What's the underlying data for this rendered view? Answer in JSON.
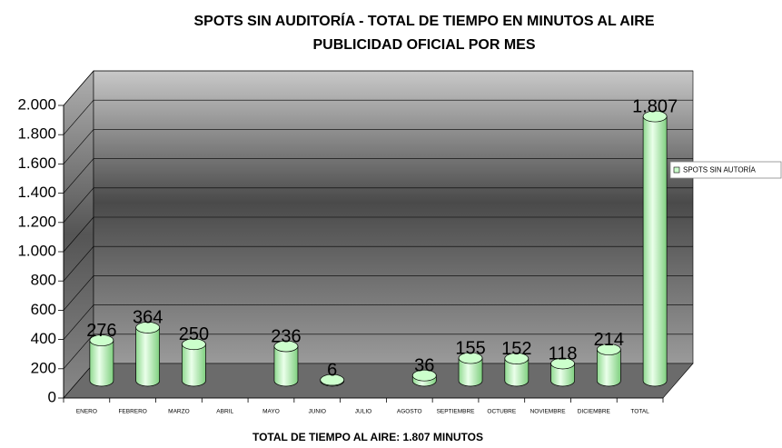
{
  "chart_data": {
    "type": "bar3d",
    "title": "SPOTS SIN AUDITORÍA - TOTAL DE TIEMPO EN MINUTOS AL AIRE",
    "subtitle": "PUBLICIDAD OFICIAL POR MES",
    "annotation": "TOTAL DE TIEMPO AL AIRE: 1.807 MINUTOS",
    "categories": [
      "ENERO",
      "FEBRERO",
      "MARZO",
      "ABRIL",
      "MAYO",
      "JUNIO",
      "JULIO",
      "AGOSTO",
      "SEPTIEMBRE",
      "OCTUBRE",
      "NOVIEMBRE",
      "DICIEMBRE",
      "TOTAL"
    ],
    "series": [
      {
        "name": "SPOTS SIN AUTORÍA",
        "color": "#ccffcc",
        "values": [
          276,
          364,
          250,
          null,
          236,
          6,
          null,
          36,
          155,
          152,
          118,
          214,
          1807
        ],
        "value_labels": [
          "276",
          "364",
          "250",
          null,
          "236",
          "6",
          null,
          "36",
          "155",
          "152",
          "118",
          "214",
          "1.807"
        ]
      }
    ],
    "ylim": [
      0,
      2000
    ],
    "yticks": [
      0,
      200,
      400,
      600,
      800,
      {
        "value": 1000,
        "label": "1.000"
      },
      {
        "value": 1200,
        "label": "1.200"
      },
      {
        "value": 1400,
        "label": "1.400"
      },
      {
        "value": 1600,
        "label": "1.600"
      },
      {
        "value": 1800,
        "label": "1.800"
      },
      {
        "value": 2000,
        "label": "2.000"
      }
    ],
    "grid": true,
    "legend": "right"
  }
}
